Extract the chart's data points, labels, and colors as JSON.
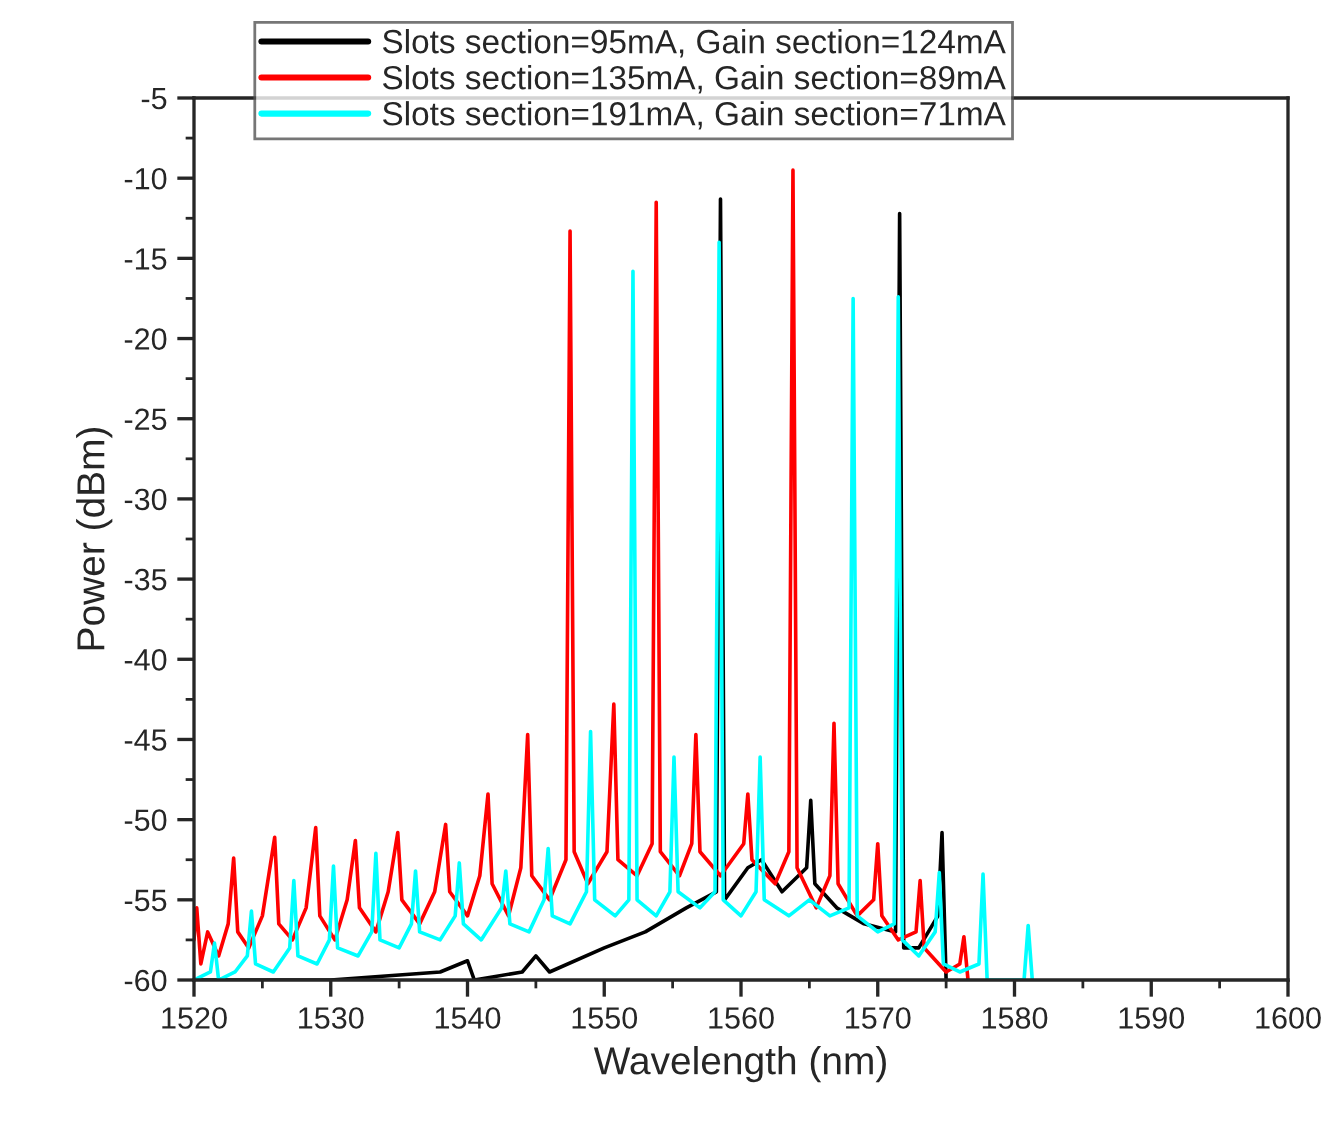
{
  "chart_data": {
    "type": "line",
    "xlabel": "Wavelength (nm)",
    "ylabel": "Power (dBm)",
    "xlim": [
      1520,
      1600
    ],
    "xticks": [
      1520,
      1530,
      1540,
      1550,
      1560,
      1570,
      1580,
      1590,
      1600
    ],
    "ylim": [
      -60,
      -5
    ],
    "yticks": [
      -60,
      -55,
      -50,
      -45,
      -40,
      -35,
      -30,
      -25,
      -20,
      -15,
      -10,
      -5
    ],
    "grid": false,
    "legend": "top",
    "marker": "none",
    "line_style": "solid",
    "series": [
      {
        "name": "Slots section=95mA, Gain section=124mA",
        "color": "#000000",
        "x": [
          1520,
          1530,
          1538,
          1540,
          1540.5,
          1544,
          1545,
          1546,
          1550,
          1553,
          1556,
          1558.2,
          1558.5,
          1558.8,
          1560.5,
          1561.5,
          1563,
          1564.8,
          1565.1,
          1565.4,
          1567,
          1569,
          1571.3,
          1571.6,
          1571.9,
          1573,
          1574.4,
          1574.7,
          1575
        ],
        "values": [
          -60,
          -60,
          -59.5,
          -58.8,
          -60,
          -59.5,
          -58.5,
          -59.5,
          -58,
          -57,
          -55.5,
          -54.5,
          -11.3,
          -55,
          -53,
          -52.5,
          -54.5,
          -53,
          -48.8,
          -54,
          -55.5,
          -56.5,
          -57,
          -12.2,
          -58,
          -58,
          -56,
          -50.8,
          -60
        ]
      },
      {
        "name": "Slots section=135mA, Gain section=89mA",
        "color": "#ff0000",
        "x": [
          1520,
          1520.2,
          1520.5,
          1521,
          1521.8,
          1522.5,
          1522.9,
          1523.2,
          1524,
          1525,
          1525.9,
          1526.2,
          1527.2,
          1528.2,
          1528.9,
          1529.2,
          1530.3,
          1531.2,
          1531.8,
          1532.1,
          1533.3,
          1534.2,
          1534.9,
          1535.2,
          1536.5,
          1537.6,
          1538.4,
          1538.7,
          1540,
          1540.9,
          1541.5,
          1541.8,
          1543,
          1543.9,
          1544.4,
          1544.7,
          1546,
          1547.2,
          1547.5,
          1547.8,
          1548.8,
          1550.2,
          1550.7,
          1551,
          1552.4,
          1553.5,
          1553.8,
          1554.1,
          1555.5,
          1556.4,
          1556.7,
          1557,
          1558.5,
          1560.2,
          1560.5,
          1560.8,
          1562.5,
          1563.5,
          1563.8,
          1564.1,
          1565.5,
          1566.5,
          1566.8,
          1567.1,
          1568.5,
          1569.7,
          1570,
          1570.3,
          1571.5,
          1572.8,
          1573.1,
          1573.4,
          1575,
          1576,
          1576.3,
          1576.6
        ],
        "values": [
          -57.5,
          -55.5,
          -59,
          -57,
          -58.5,
          -56.5,
          -52.4,
          -57,
          -58,
          -56,
          -51.1,
          -56.5,
          -57.5,
          -55.5,
          -50.5,
          -56,
          -57.5,
          -55,
          -51.3,
          -55.5,
          -57,
          -54.5,
          -50.8,
          -55,
          -56.5,
          -54.5,
          -50.3,
          -54.5,
          -56,
          -53.5,
          -48.4,
          -54,
          -56,
          -53,
          -44.7,
          -53.5,
          -55,
          -52.5,
          -13.3,
          -52,
          -54,
          -52,
          -42.8,
          -52.5,
          -53.5,
          -51.5,
          -11.5,
          -52,
          -53.5,
          -51.5,
          -44.7,
          -52,
          -53.5,
          -51.5,
          -48.4,
          -52.5,
          -54,
          -52,
          -9.5,
          -53,
          -55.5,
          -53.5,
          -44,
          -54,
          -56,
          -55,
          -51.5,
          -56,
          -57.5,
          -57,
          -53.8,
          -58,
          -59.5,
          -59,
          -57.3,
          -60
        ]
      },
      {
        "name": "Slots section=191mA, Gain section=71mA",
        "color": "#00ffff",
        "x": [
          1520,
          1521.2,
          1521.5,
          1521.8,
          1523,
          1523.9,
          1524.2,
          1524.5,
          1525.8,
          1527,
          1527.3,
          1527.6,
          1529,
          1529.9,
          1530.2,
          1530.5,
          1532,
          1533,
          1533.3,
          1533.6,
          1535,
          1535.9,
          1536.2,
          1536.5,
          1538,
          1539.1,
          1539.4,
          1539.7,
          1541,
          1542.5,
          1542.8,
          1543.1,
          1544.5,
          1545.6,
          1545.9,
          1546.2,
          1547.5,
          1548.7,
          1549,
          1549.3,
          1550.8,
          1551.8,
          1552.1,
          1552.4,
          1553.8,
          1554.8,
          1555.1,
          1555.4,
          1557,
          1558.1,
          1558.4,
          1558.7,
          1560,
          1561.1,
          1561.4,
          1561.7,
          1563.5,
          1565,
          1566.5,
          1567.9,
          1568.2,
          1568.5,
          1570,
          1571.2,
          1571.5,
          1571.8,
          1573,
          1574.2,
          1574.5,
          1574.8,
          1576,
          1577.4,
          1577.7,
          1578,
          1580.7,
          1581,
          1581.3
        ],
        "values": [
          -60,
          -59.5,
          -57.7,
          -60,
          -59.5,
          -58.5,
          -55.7,
          -59,
          -59.5,
          -58,
          -53.8,
          -58.5,
          -59,
          -57.5,
          -52.9,
          -58,
          -58.5,
          -57,
          -52.1,
          -57.5,
          -58,
          -56.5,
          -53.2,
          -57,
          -57.5,
          -56,
          -52.7,
          -56.5,
          -57.5,
          -55.5,
          -53.2,
          -56.5,
          -57,
          -55,
          -51.8,
          -56,
          -56.5,
          -54.5,
          -44.5,
          -55,
          -56,
          -55,
          -15.8,
          -55,
          -56,
          -54.5,
          -46.1,
          -54.5,
          -55.5,
          -54.5,
          -14,
          -55,
          -56,
          -54.5,
          -46.1,
          -55,
          -56,
          -55,
          -56,
          -55.5,
          -17.5,
          -56,
          -57,
          -56.5,
          -17.4,
          -57.5,
          -58.5,
          -57,
          -53.3,
          -59,
          -59.5,
          -59,
          -53.4,
          -60,
          -60,
          -56.6,
          -60
        ]
      }
    ]
  }
}
